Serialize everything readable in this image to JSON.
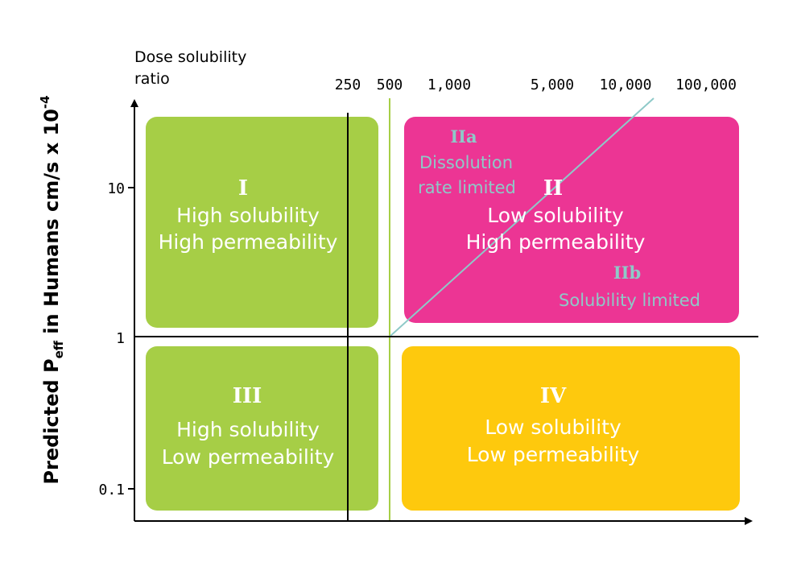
{
  "colors": {
    "green": "#a6ce46",
    "pink": "#ec3594",
    "yellow": "#fec90d",
    "teal": "#8ec9c8",
    "lightText": "#ffffff",
    "axis": "#000000"
  },
  "x_axis": {
    "caption_line1": "Dose solubility",
    "caption_line2": "ratio",
    "ticks": [
      "250",
      "500",
      "1,000",
      "5,000",
      "10,000",
      "100,000"
    ]
  },
  "y_axis": {
    "label_prefix": "Predicted P",
    "label_subscript": "eff",
    "label_middle": " in Humans cm/s x 10",
    "label_superscript": "-4",
    "ticks": [
      "10",
      "1",
      "0.1"
    ]
  },
  "quadrants": {
    "I": {
      "title": "I",
      "line1": "High solubility",
      "line2": "High permeability",
      "color": "#a6ce46"
    },
    "II": {
      "title": "II",
      "line1": "Low solubility",
      "line2": "High permeability",
      "color": "#ec3594"
    },
    "III": {
      "title": "III",
      "line1": "High solubility",
      "line2": "Low permeability",
      "color": "#a6ce46"
    },
    "IV": {
      "title": "IV",
      "line1": "Low solubility",
      "line2": "Low permeability",
      "color": "#fec90d"
    }
  },
  "subregions": {
    "IIa": {
      "title": "IIa",
      "line1": "Dissolution",
      "line2": "rate limited"
    },
    "IIb": {
      "title": "IIb",
      "line1": "Solubility limited"
    }
  }
}
